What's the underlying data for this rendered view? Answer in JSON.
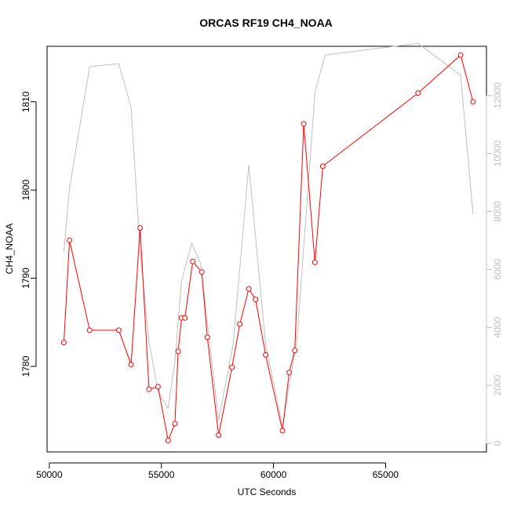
{
  "chart_data": {
    "type": "line",
    "title": "ORCAS RF19 CH4_NOAA",
    "xlabel": "UTC Seconds",
    "ylabel": "CH4_NOAA",
    "xlim": [
      49900,
      69500
    ],
    "ylim": [
      1770.3,
      1816.3
    ],
    "y2lim": [
      -300,
      13700
    ],
    "x_ticks": [
      50000,
      55000,
      60000,
      65000
    ],
    "y_ticks": [
      1780,
      1790,
      1800,
      1810
    ],
    "y2_ticks": [
      0,
      2000,
      4000,
      6000,
      8000,
      10000,
      12000
    ],
    "grid": false,
    "colors": {
      "series1": "#ff0000",
      "series2": "#c0c0c0"
    },
    "series": [
      {
        "axis": "left",
        "markers": true,
        "x": [
          50650,
          50900,
          51800,
          53100,
          53650,
          54050,
          54450,
          54850,
          55300,
          55600,
          55750,
          55900,
          56050,
          56400,
          56800,
          57050,
          57550,
          58150,
          58500,
          58900,
          59200,
          59650,
          60400,
          60700,
          60950,
          61350,
          61850,
          62200,
          66450,
          68350,
          68900
        ],
        "y": [
          1782.7,
          1794.3,
          1784.1,
          1784.1,
          1780.2,
          1795.7,
          1777.4,
          1777.7,
          1771.6,
          1773.5,
          1781.7,
          1785.5,
          1785.5,
          1791.9,
          1790.7,
          1783.3,
          1772.2,
          1779.9,
          1784.8,
          1788.8,
          1787.6,
          1781.3,
          1772.7,
          1779.3,
          1781.8,
          1807.5,
          1791.8,
          1802.7,
          1811.0,
          1815.3,
          1810.0
        ]
      },
      {
        "axis": "right",
        "markers": false,
        "x": [
          50650,
          50900,
          51800,
          53100,
          53650,
          54050,
          54450,
          54850,
          55300,
          55600,
          55900,
          56350,
          56750,
          57550,
          58200,
          58900,
          59650,
          60400,
          61050,
          61850,
          62300,
          66450,
          68350,
          68900
        ],
        "y": [
          6600,
          8800,
          13000,
          13100,
          11600,
          6600,
          3500,
          1800,
          1200,
          2800,
          5600,
          6900,
          6200,
          800,
          3400,
          9600,
          3400,
          600,
          3600,
          12100,
          13400,
          13800,
          12700,
          7900
        ]
      }
    ]
  }
}
